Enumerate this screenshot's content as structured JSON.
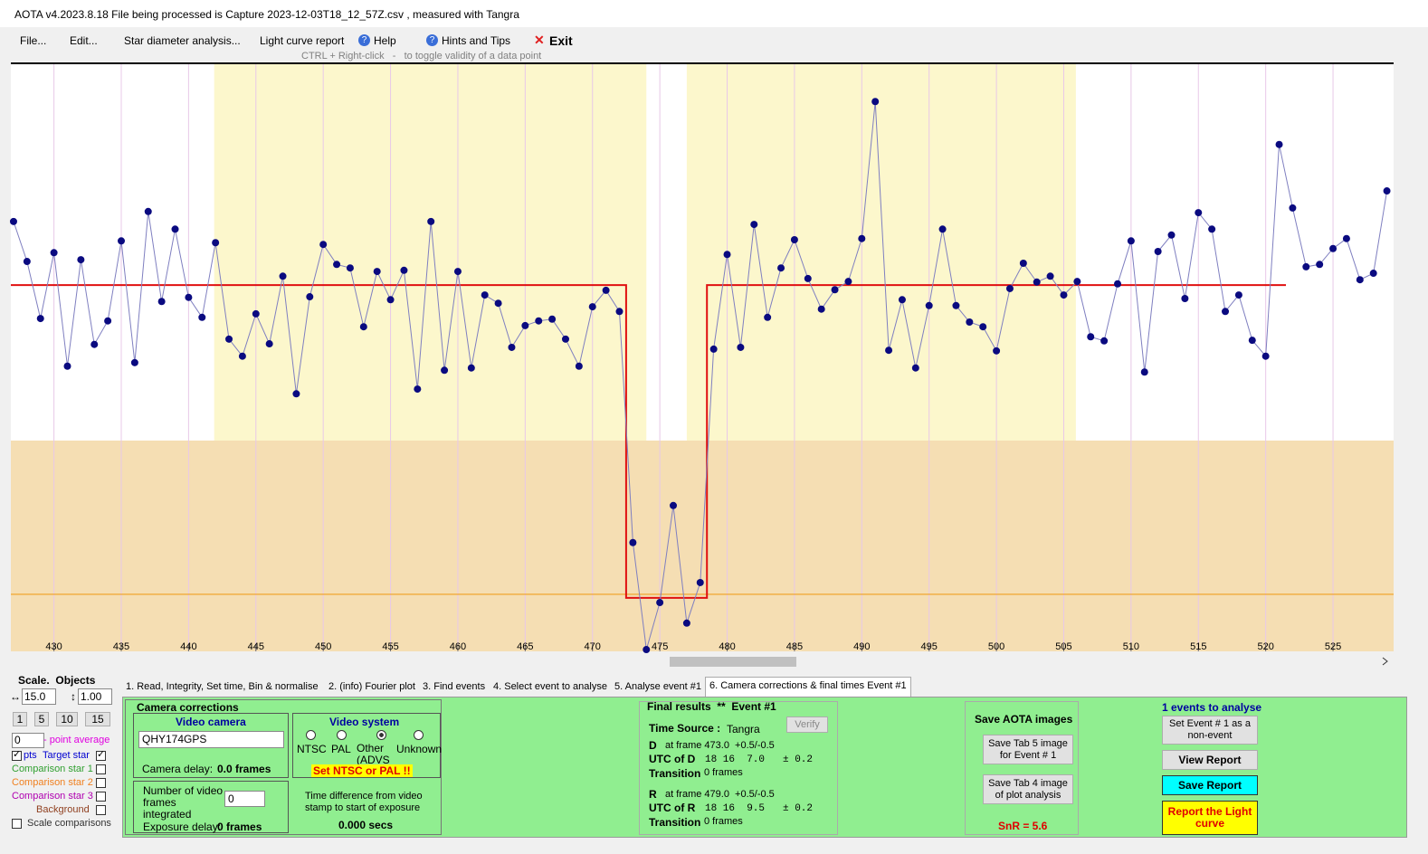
{
  "window": {
    "title": "AOTA v4.2023.8.18   File being processed is  Capture 2023-12-03T18_12_57Z.csv ,  measured with Tangra"
  },
  "menu": {
    "items": [
      "File...",
      "Edit...",
      "Star diameter analysis...",
      "Light curve report",
      "Help",
      "Hints and Tips",
      "Exit"
    ],
    "hint": "CTRL + Right-click   -   to toggle validity of a data point"
  },
  "chart_data": {
    "type": "line",
    "xlim": [
      426.8,
      529.5
    ],
    "xticks": [
      430,
      435,
      440,
      445,
      450,
      455,
      460,
      465,
      470,
      475,
      480,
      485,
      490,
      495,
      500,
      505,
      510,
      515,
      520,
      525
    ],
    "ylim": [
      0,
      100
    ],
    "grid": true,
    "highlight_ranges": [
      [
        441.9,
        474.0
      ],
      [
        477.0,
        505.9
      ]
    ],
    "reference_level": 9.7,
    "reference_color": "#f0a020",
    "series": [
      {
        "color": "#7f7fc0",
        "marker_color": "#0a0a80",
        "x": [
          427,
          428,
          429,
          430,
          431,
          432,
          433,
          434,
          435,
          436,
          437,
          438,
          439,
          440,
          441,
          442,
          443,
          444,
          445,
          446,
          447,
          448,
          449,
          450,
          451,
          452,
          453,
          454,
          455,
          456,
          457,
          458,
          459,
          460,
          461,
          462,
          463,
          464,
          465,
          466,
          467,
          468,
          469,
          470,
          471,
          472,
          473,
          474,
          475,
          476,
          477,
          478,
          479,
          480,
          481,
          482,
          483,
          484,
          485,
          486,
          487,
          488,
          489,
          490,
          491,
          492,
          493,
          494,
          495,
          496,
          497,
          498,
          499,
          500,
          501,
          502,
          503,
          504,
          505,
          506,
          507,
          508,
          509,
          510,
          511,
          512,
          513,
          514,
          515,
          516,
          517,
          518,
          519,
          520,
          521,
          522,
          523,
          524,
          525,
          526,
          527,
          528,
          529
        ],
        "values": [
          73.1,
          66.3,
          56.6,
          67.8,
          48.5,
          66.6,
          52.2,
          56.2,
          69.8,
          49.1,
          74.8,
          59.5,
          71.8,
          60.2,
          56.8,
          69.5,
          53.1,
          50.2,
          57.4,
          52.3,
          63.8,
          43.8,
          60.3,
          69.2,
          65.8,
          65.2,
          55.2,
          64.6,
          59.8,
          64.8,
          44.6,
          73.1,
          47.8,
          64.6,
          48.2,
          60.6,
          59.2,
          51.7,
          55.4,
          56.2,
          56.5,
          53.1,
          48.5,
          58.6,
          61.4,
          57.8,
          18.5,
          0.3,
          8.3,
          24.8,
          4.8,
          11.7,
          51.4,
          67.5,
          51.7,
          72.6,
          56.8,
          65.2,
          70.0,
          63.4,
          58.2,
          61.5,
          62.9,
          70.2,
          93.5,
          51.2,
          59.8,
          48.2,
          58.8,
          71.8,
          58.8,
          56.0,
          55.2,
          51.1,
          61.7,
          66.0,
          62.8,
          63.8,
          60.6,
          62.9,
          53.5,
          52.8,
          62.5,
          69.8,
          47.5,
          68.0,
          70.8,
          60.0,
          74.6,
          71.8,
          57.8,
          60.6,
          52.9,
          50.2,
          86.2,
          75.4,
          65.4,
          65.8,
          68.5,
          70.2,
          63.2,
          64.3,
          78.3
        ]
      },
      {
        "color": "#e01010",
        "x": [
          426.8,
          472.5,
          472.5,
          478.5,
          478.5,
          521.5
        ],
        "values": [
          62.3,
          62.3,
          9.1,
          9.1,
          62.3,
          62.3
        ]
      }
    ]
  },
  "left_panel": {
    "title": "Scale.  Objects",
    "scale_x": "15.0",
    "scale_y": "1.00",
    "buttons": [
      "1",
      "5",
      "10",
      "15"
    ],
    "average": "0",
    "average_label": "- point average",
    "pts": "pts",
    "objects": [
      "Target star",
      "Comparison star 1",
      "Comparison star 2",
      "Comparison star 3",
      "Background"
    ],
    "scale_comparisons": "Scale comparisons"
  },
  "tabs": [
    "1.  Read, Integrity, Set time, Bin & normalise",
    "2. (info) Fourier plot",
    "3. Find events",
    "4. Select event to analyse",
    "5. Analyse event #1",
    "6. Camera corrections & final times Event #1"
  ],
  "camera_corrections": {
    "title": "Camera corrections",
    "video_camera": "Video camera",
    "camera": "QHY174GPS",
    "camera_delay_label": "Camera delay:",
    "camera_delay": "0.0 frames",
    "video_system": "Video system",
    "systems": [
      "NTSC",
      "PAL",
      "Other (ADVS",
      "Unknown"
    ],
    "warning": "Set NTSC or PAL !!",
    "frames_integrated_label": "Number of video frames integrated",
    "frames_integrated": "0",
    "exposure_delay_label": "Exposure delay:",
    "exposure_delay": "0 frames",
    "time_diff_label": "Time difference from video stamp to start of exposure",
    "time_diff": "0.000 secs"
  },
  "final_results": {
    "title": "Final results  **  Event #1",
    "time_source_label": "Time Source :",
    "time_source": "Tangra",
    "verify": "Verify",
    "d": {
      "letter": "D",
      "frame": "at frame 473.0  +0.5/-0.5",
      "utc_label": "UTC of D",
      "utc": "18 16  7.0",
      "err": "± 0.2",
      "transition_label": "Transition",
      "transition": "0 frames"
    },
    "r": {
      "letter": "R",
      "frame": "at frame 479.0  +0.5/-0.5",
      "utc_label": "UTC of R",
      "utc": "18 16  9.5",
      "err": "± 0.2",
      "transition_label": "Transition",
      "transition": "0 frames"
    }
  },
  "save_images": {
    "title": "Save AOTA images",
    "tab5": "Save Tab 5 image for Event # 1",
    "tab4": "Save Tab 4 image of plot analysis",
    "snr": "SnR = 5.6"
  },
  "report": {
    "title": "1 events to analyse",
    "non_event": "Set Event # 1 as a non-event",
    "view": "View Report",
    "save": "Save Report",
    "report": "Report the Light curve"
  }
}
